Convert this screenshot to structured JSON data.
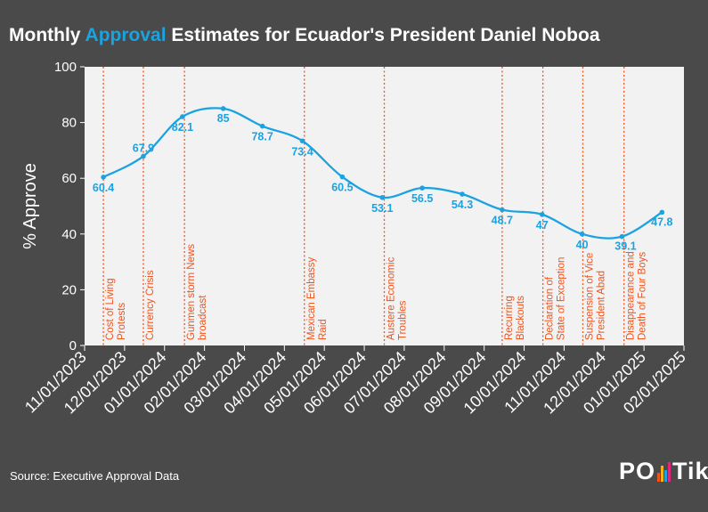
{
  "title": {
    "prefix": "Monthly ",
    "accent": "Approval",
    "suffix": " Estimates for Ecuador's President Daniel Noboa"
  },
  "colors": {
    "background": "#4a4a4a",
    "plot_bg": "#f2f2f2",
    "line": "#1aa3e0",
    "event": "#f0531c",
    "text": "#ffffff"
  },
  "source": "Source: Executive Approval Data",
  "logo": {
    "left": "PO",
    "right": "Tik"
  },
  "chart_data": {
    "type": "line",
    "title": "Monthly Approval Estimates for Ecuador's President Daniel Noboa",
    "xlabel": "",
    "ylabel": "% Approve",
    "ylim": [
      0,
      100
    ],
    "yticks": [
      0,
      20,
      40,
      60,
      80,
      100
    ],
    "xtick_labels": [
      "11/01/2023",
      "12/01/2023",
      "01/01/2024",
      "02/01/2024",
      "03/01/2024",
      "04/01/2024",
      "05/01/2024",
      "06/01/2024",
      "07/01/2024",
      "08/01/2024",
      "09/01/2024",
      "10/01/2024",
      "11/01/2024",
      "12/01/2024",
      "01/01/2025",
      "02/01/2025"
    ],
    "x_units": "months since 11/01/2023",
    "series": [
      {
        "name": "Approval",
        "points": [
          {
            "x": 0.47,
            "y": 60.4,
            "label": "60.4"
          },
          {
            "x": 1.47,
            "y": 67.9,
            "label": "67.9"
          },
          {
            "x": 2.45,
            "y": 82.1,
            "label": "82.1"
          },
          {
            "x": 3.47,
            "y": 85,
            "label": "85"
          },
          {
            "x": 4.45,
            "y": 78.7,
            "label": "78.7"
          },
          {
            "x": 5.45,
            "y": 73.4,
            "label": "73.4"
          },
          {
            "x": 6.45,
            "y": 60.5,
            "label": "60.5"
          },
          {
            "x": 7.45,
            "y": 53.1,
            "label": "53.1"
          },
          {
            "x": 8.45,
            "y": 56.5,
            "label": "56.5"
          },
          {
            "x": 9.45,
            "y": 54.3,
            "label": "54.3"
          },
          {
            "x": 10.45,
            "y": 48.7,
            "label": "48.7"
          },
          {
            "x": 11.45,
            "y": 47,
            "label": "47"
          },
          {
            "x": 12.45,
            "y": 40,
            "label": "40"
          },
          {
            "x": 13.45,
            "y": 39.1,
            "label": "39.1"
          },
          {
            "x": 14.45,
            "y": 47.8,
            "label": "47.8"
          }
        ]
      }
    ],
    "events": [
      {
        "x": 0.47,
        "label": "Cost of Living Protests"
      },
      {
        "x": 1.47,
        "label": "Currency Crisis"
      },
      {
        "x": 2.5,
        "label": "Gunmen storm News broadcast"
      },
      {
        "x": 5.5,
        "label": "Mexican Embassy Raid"
      },
      {
        "x": 7.5,
        "label": "Austere Economic Troubles"
      },
      {
        "x": 10.45,
        "label": "Recurring Blackouts"
      },
      {
        "x": 11.47,
        "label": "Declaration of State of Exception"
      },
      {
        "x": 12.47,
        "label": "Suspension of Vice President Abad"
      },
      {
        "x": 13.5,
        "label": "Disappearance and Death of Four Boys"
      }
    ]
  }
}
